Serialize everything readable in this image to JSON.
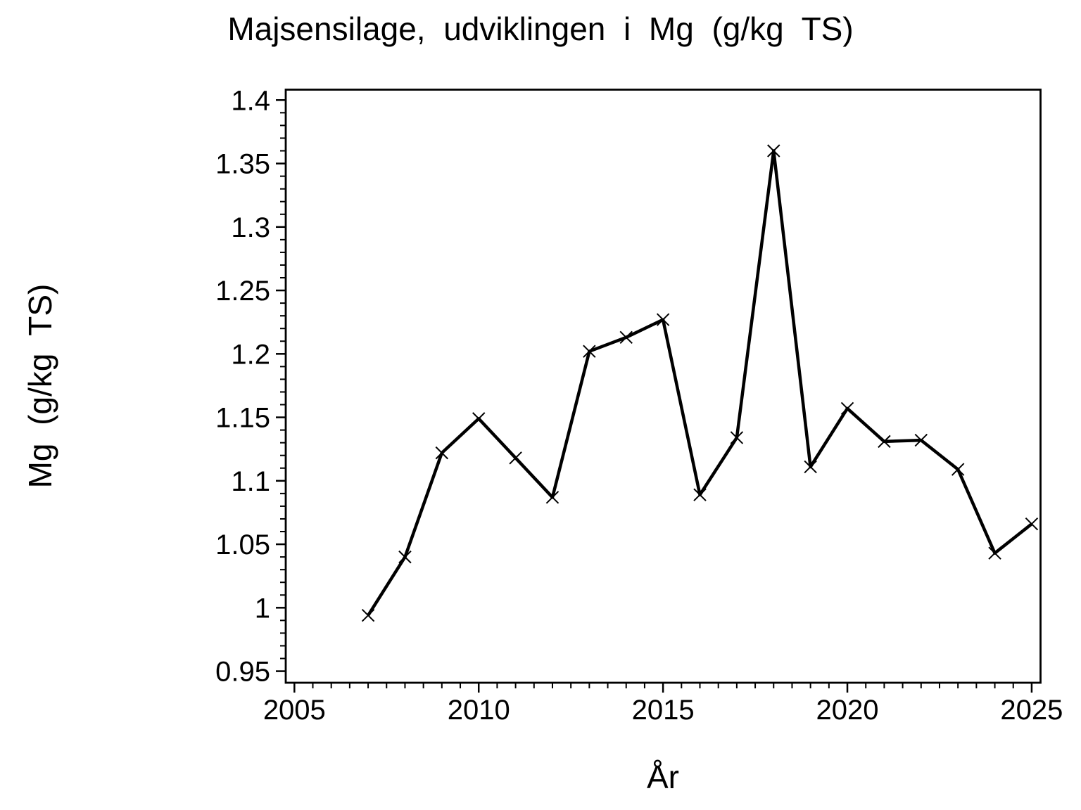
{
  "page": {
    "background_color": "#ffffff",
    "foreground_color": "#000000"
  },
  "chart_data": {
    "type": "line",
    "title": "Majsensilage, udviklingen i Mg (g/kg TS)",
    "xlabel": "År",
    "ylabel": "Mg (g/kg TS)",
    "x": [
      2007,
      2008,
      2009,
      2010,
      2011,
      2012,
      2013,
      2014,
      2015,
      2016,
      2017,
      2018,
      2019,
      2020,
      2021,
      2022,
      2023,
      2024,
      2025
    ],
    "series": [
      {
        "name": "Mg (g/kg TS)",
        "values": [
          0.994,
          1.04,
          1.122,
          1.149,
          1.118,
          1.087,
          1.202,
          1.213,
          1.227,
          1.089,
          1.134,
          1.36,
          1.111,
          1.157,
          1.131,
          1.132,
          1.109,
          1.043,
          1.066
        ]
      }
    ],
    "marker": "x-cross",
    "line_color": "#000000",
    "xlim": [
      2004.765,
      2025.24
    ],
    "ylim": [
      0.9409,
      1.4082
    ],
    "x_major_ticks": [
      2005,
      2010,
      2015,
      2020,
      2025
    ],
    "x_major_tick_labels": [
      "2005",
      "2010",
      "2015",
      "2020",
      "2025"
    ],
    "x_minor_step": 0.5,
    "y_major_ticks": [
      0.95,
      1,
      1.05,
      1.1,
      1.15,
      1.2,
      1.25,
      1.3,
      1.35,
      1.4
    ],
    "y_major_tick_labels": [
      "0.95",
      "1",
      "1.05",
      "1.1",
      "1.15",
      "1.2",
      "1.25",
      "1.3",
      "1.35",
      "1.4"
    ],
    "y_minor_step": 0.01,
    "grid": false,
    "legend": "none"
  }
}
